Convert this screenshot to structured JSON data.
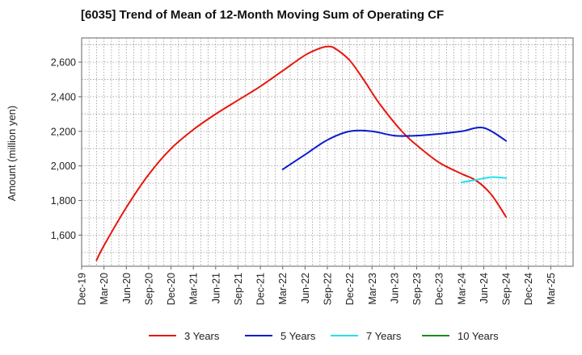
{
  "chart_data": {
    "type": "line",
    "title": "[6035]  Trend of Mean of 12-Month Moving Sum of Operating CF",
    "xlabel": "",
    "ylabel": "Amount (million yen)",
    "ylim": [
      1420,
      2740
    ],
    "yticks": [
      1600,
      1800,
      2000,
      2200,
      2400,
      2600
    ],
    "ytick_labels": [
      "1,600",
      "1,800",
      "2,000",
      "2,200",
      "2,400",
      "2,600"
    ],
    "x_range": [
      0,
      66
    ],
    "xtick_labels": [
      "Dec-19",
      "Mar-20",
      "Jun-20",
      "Sep-20",
      "Dec-20",
      "Mar-21",
      "Jun-21",
      "Sep-21",
      "Dec-21",
      "Mar-22",
      "Jun-22",
      "Sep-22",
      "Dec-22",
      "Mar-23",
      "Jun-23",
      "Sep-23",
      "Dec-23",
      "Mar-24",
      "Jun-24",
      "Sep-24",
      "Dec-24",
      "Mar-25"
    ],
    "grid": true,
    "legend_position": "bottom",
    "series": [
      {
        "name": "3 Years",
        "color": "#e8160c",
        "x": [
          2,
          3,
          6,
          9,
          12,
          15,
          18,
          21,
          24,
          27,
          30,
          32,
          33,
          34,
          36,
          38,
          40,
          43,
          45,
          48,
          51,
          53,
          55,
          57
        ],
        "values": [
          1455,
          1540,
          1760,
          1950,
          2100,
          2210,
          2300,
          2380,
          2460,
          2550,
          2640,
          2680,
          2690,
          2680,
          2610,
          2490,
          2360,
          2200,
          2120,
          2020,
          1955,
          1915,
          1835,
          1705
        ]
      },
      {
        "name": "5 Years",
        "color": "#0a1ccc",
        "x": [
          27,
          30,
          33,
          36,
          39,
          42,
          45,
          48,
          51,
          54,
          57
        ],
        "values": [
          1980,
          2065,
          2150,
          2200,
          2200,
          2175,
          2175,
          2185,
          2200,
          2220,
          2145
        ]
      },
      {
        "name": "7 Years",
        "color": "#22e0f0",
        "x": [
          51,
          53,
          55,
          57
        ],
        "values": [
          1905,
          1920,
          1935,
          1930
        ]
      },
      {
        "name": "10 Years",
        "color": "#1f8a1f",
        "x": [],
        "values": []
      }
    ]
  }
}
